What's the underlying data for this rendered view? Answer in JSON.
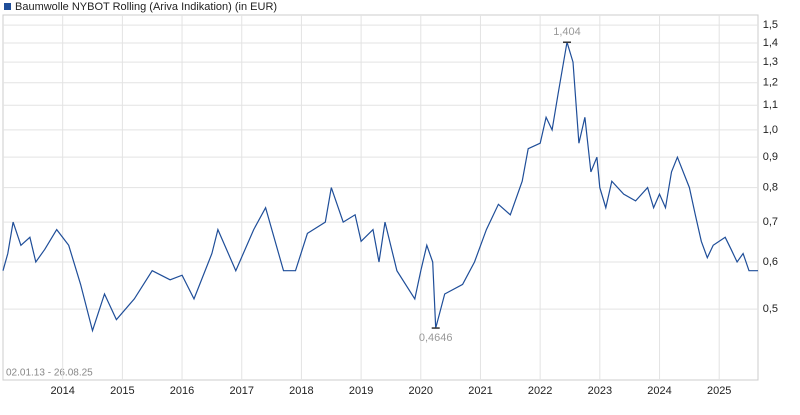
{
  "chart_data": {
    "type": "line",
    "log_scale": true,
    "grid": true,
    "date_range": "02.01.13 - 26.08.25",
    "xlim": [
      2013.0,
      2025.65
    ],
    "xticks": [
      2014,
      2015,
      2016,
      2017,
      2018,
      2019,
      2020,
      2021,
      2022,
      2023,
      2024,
      2025
    ],
    "ylim": [
      0.38,
      1.56
    ],
    "yticks": [
      {
        "value": 0.5,
        "label": "0,5"
      },
      {
        "value": 0.6,
        "label": "0,6"
      },
      {
        "value": 0.7,
        "label": "0,7"
      },
      {
        "value": 0.8,
        "label": "0,8"
      },
      {
        "value": 0.9,
        "label": "0,9"
      },
      {
        "value": 1.0,
        "label": "1,0"
      },
      {
        "value": 1.1,
        "label": "1,1"
      },
      {
        "value": 1.2,
        "label": "1,2"
      },
      {
        "value": 1.3,
        "label": "1,3"
      },
      {
        "value": 1.4,
        "label": "1,4"
      },
      {
        "value": 1.5,
        "label": "1,5"
      }
    ],
    "x": [
      2013.0,
      2013.08,
      2013.17,
      2013.3,
      2013.45,
      2013.55,
      2013.7,
      2013.9,
      2014.1,
      2014.3,
      2014.5,
      2014.7,
      2014.9,
      2015.2,
      2015.5,
      2015.8,
      2016.0,
      2016.2,
      2016.5,
      2016.6,
      2016.9,
      2017.2,
      2017.4,
      2017.7,
      2017.9,
      2018.1,
      2018.4,
      2018.5,
      2018.7,
      2018.9,
      2019.0,
      2019.2,
      2019.3,
      2019.4,
      2019.6,
      2019.9,
      2020.0,
      2020.1,
      2020.2,
      2020.25,
      2020.4,
      2020.7,
      2020.9,
      2021.1,
      2021.3,
      2021.5,
      2021.7,
      2021.8,
      2022.0,
      2022.1,
      2022.2,
      2022.3,
      2022.45,
      2022.55,
      2022.65,
      2022.75,
      2022.85,
      2022.95,
      2023.0,
      2023.1,
      2023.2,
      2023.4,
      2023.6,
      2023.8,
      2023.9,
      2024.0,
      2024.1,
      2024.2,
      2024.3,
      2024.5,
      2024.6,
      2024.7,
      2024.8,
      2024.9,
      2025.1,
      2025.2,
      2025.3,
      2025.4,
      2025.5,
      2025.65
    ],
    "series": [
      {
        "name": "Baumwolle NYBOT Rolling (Ariva Indikation) (in EUR)",
        "color": "#1f4e99",
        "values": [
          0.58,
          0.62,
          0.7,
          0.64,
          0.66,
          0.6,
          0.63,
          0.68,
          0.64,
          0.55,
          0.46,
          0.53,
          0.48,
          0.52,
          0.58,
          0.56,
          0.57,
          0.52,
          0.62,
          0.68,
          0.58,
          0.68,
          0.74,
          0.58,
          0.58,
          0.67,
          0.7,
          0.8,
          0.7,
          0.72,
          0.65,
          0.68,
          0.6,
          0.7,
          0.58,
          0.52,
          0.58,
          0.64,
          0.6,
          0.4646,
          0.53,
          0.55,
          0.6,
          0.68,
          0.75,
          0.72,
          0.82,
          0.93,
          0.95,
          1.05,
          1.0,
          1.15,
          1.404,
          1.3,
          0.95,
          1.05,
          0.85,
          0.9,
          0.8,
          0.74,
          0.82,
          0.78,
          0.76,
          0.8,
          0.74,
          0.78,
          0.74,
          0.85,
          0.9,
          0.8,
          0.72,
          0.65,
          0.61,
          0.64,
          0.66,
          0.63,
          0.6,
          0.62,
          0.58,
          0.58
        ]
      }
    ],
    "annotations": [
      {
        "label": "1,404",
        "x": 2022.45,
        "y": 1.404
      },
      {
        "label": "0,4646",
        "x": 2020.25,
        "y": 0.4646
      }
    ]
  }
}
